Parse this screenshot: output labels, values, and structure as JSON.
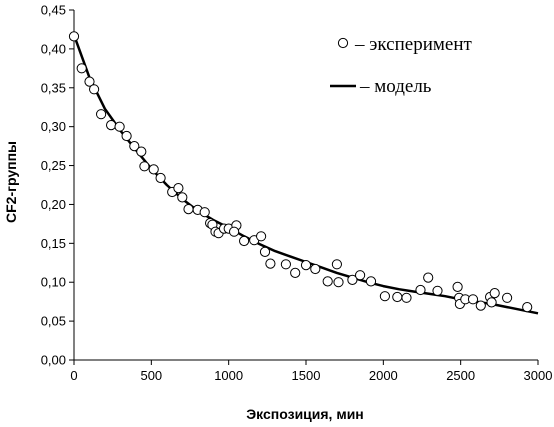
{
  "chart_data": {
    "type": "scatter",
    "xlabel": "Экспозиция, мин",
    "ylabel": "CF2-группы",
    "xlim": [
      0,
      3000
    ],
    "ylim": [
      0,
      0.45
    ],
    "x_ticks": [
      "0",
      "500",
      "1000",
      "1500",
      "2000",
      "2500",
      "3000"
    ],
    "y_ticks": [
      "0,00",
      "0,05",
      "0,10",
      "0,15",
      "0,20",
      "0,25",
      "0,30",
      "0,35",
      "0,40",
      "0,45"
    ],
    "grid": false,
    "legend_position": "top-right",
    "series": [
      {
        "name": "– эксперимент",
        "kind": "markers",
        "marker": "open-circle",
        "color": "#000000",
        "points": [
          [
            0,
            0.416
          ],
          [
            50,
            0.375
          ],
          [
            100,
            0.358
          ],
          [
            130,
            0.348
          ],
          [
            175,
            0.316
          ],
          [
            240,
            0.302
          ],
          [
            295,
            0.3
          ],
          [
            340,
            0.288
          ],
          [
            390,
            0.275
          ],
          [
            435,
            0.268
          ],
          [
            455,
            0.249
          ],
          [
            515,
            0.245
          ],
          [
            560,
            0.234
          ],
          [
            635,
            0.216
          ],
          [
            675,
            0.221
          ],
          [
            700,
            0.209
          ],
          [
            740,
            0.194
          ],
          [
            800,
            0.193
          ],
          [
            845,
            0.19
          ],
          [
            880,
            0.176
          ],
          [
            895,
            0.174
          ],
          [
            915,
            0.165
          ],
          [
            935,
            0.163
          ],
          [
            970,
            0.169
          ],
          [
            1000,
            0.169
          ],
          [
            1050,
            0.173
          ],
          [
            1035,
            0.165
          ],
          [
            1100,
            0.153
          ],
          [
            1165,
            0.154
          ],
          [
            1210,
            0.159
          ],
          [
            1235,
            0.139
          ],
          [
            1270,
            0.124
          ],
          [
            1370,
            0.123
          ],
          [
            1430,
            0.112
          ],
          [
            1500,
            0.122
          ],
          [
            1560,
            0.117
          ],
          [
            1640,
            0.101
          ],
          [
            1700,
            0.123
          ],
          [
            1710,
            0.1
          ],
          [
            1800,
            0.103
          ],
          [
            1850,
            0.109
          ],
          [
            1920,
            0.101
          ],
          [
            2010,
            0.082
          ],
          [
            2090,
            0.081
          ],
          [
            2150,
            0.08
          ],
          [
            2240,
            0.09
          ],
          [
            2290,
            0.106
          ],
          [
            2350,
            0.089
          ],
          [
            2480,
            0.094
          ],
          [
            2490,
            0.08
          ],
          [
            2495,
            0.072
          ],
          [
            2530,
            0.078
          ],
          [
            2580,
            0.078
          ],
          [
            2630,
            0.07
          ],
          [
            2690,
            0.081
          ],
          [
            2700,
            0.074
          ],
          [
            2720,
            0.086
          ],
          [
            2800,
            0.08
          ],
          [
            2930,
            0.068
          ]
        ]
      },
      {
        "name": "– модель",
        "kind": "line",
        "color": "#000000",
        "points": [
          [
            0,
            0.418
          ],
          [
            100,
            0.363
          ],
          [
            200,
            0.323
          ],
          [
            300,
            0.295
          ],
          [
            400,
            0.27
          ],
          [
            500,
            0.246
          ],
          [
            600,
            0.225
          ],
          [
            700,
            0.207
          ],
          [
            800,
            0.192
          ],
          [
            900,
            0.18
          ],
          [
            1000,
            0.17
          ],
          [
            1100,
            0.159
          ],
          [
            1200,
            0.149
          ],
          [
            1300,
            0.14
          ],
          [
            1400,
            0.133
          ],
          [
            1500,
            0.126
          ],
          [
            1600,
            0.119
          ],
          [
            1700,
            0.112
          ],
          [
            1800,
            0.106
          ],
          [
            1900,
            0.1
          ],
          [
            2000,
            0.095
          ],
          [
            2100,
            0.091
          ],
          [
            2200,
            0.088
          ],
          [
            2300,
            0.085
          ],
          [
            2400,
            0.082
          ],
          [
            2500,
            0.078
          ],
          [
            2600,
            0.075
          ],
          [
            2700,
            0.072
          ],
          [
            2800,
            0.068
          ],
          [
            2900,
            0.064
          ],
          [
            3000,
            0.06
          ]
        ]
      }
    ]
  }
}
